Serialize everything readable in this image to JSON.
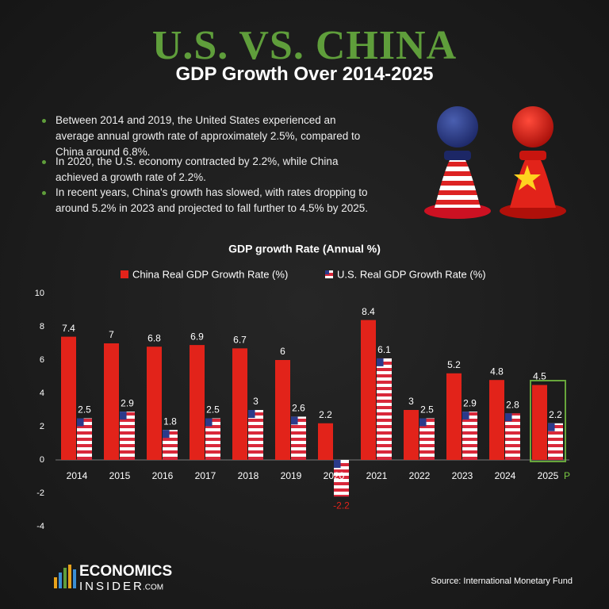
{
  "header": {
    "title": "U.S. VS. CHINA",
    "subtitle": "GDP Growth Over 2014-2025"
  },
  "bullets": [
    "Between 2014 and 2019, the United States experienced an average annual growth rate of approximately 2.5%, compared to China around 6.8%.",
    "In 2020, the U.S. economy contracted by 2.2%, while China achieved a growth rate of 2.2%.",
    "In recent years, China's growth has slowed, with rates dropping to around 5.2% in 2023 and projected to fall further to 4.5% by 2025."
  ],
  "chart_data": {
    "type": "bar",
    "title": "GDP growth Rate (Annual %)",
    "categories": [
      "2014",
      "2015",
      "2016",
      "2017",
      "2018",
      "2019",
      "2020",
      "2021",
      "2022",
      "2023",
      "2024",
      "2025"
    ],
    "projection_marker": "P",
    "series": [
      {
        "name": "China  Real GDP Growth Rate (%)",
        "color": "#e2231a",
        "values": [
          7.4,
          7,
          6.8,
          6.9,
          6.7,
          6,
          2.2,
          8.4,
          3,
          5.2,
          4.8,
          4.5
        ]
      },
      {
        "name": "U.S. Real GDP Growth Rate (%)",
        "color": "#d9283a",
        "values": [
          2.5,
          2.9,
          1.8,
          2.5,
          3,
          2.6,
          -2.2,
          6.1,
          2.5,
          2.9,
          2.8,
          2.2
        ]
      }
    ],
    "ylim": [
      -4,
      10
    ],
    "yticks": [
      -4,
      -2,
      0,
      2,
      4,
      6,
      8,
      10
    ],
    "grid": false
  },
  "footer": {
    "brand_top": "ECONOMICS",
    "brand_bottom": "INSIDER",
    "brand_suffix": ".COM",
    "source": "Source: International Monetary Fund"
  }
}
